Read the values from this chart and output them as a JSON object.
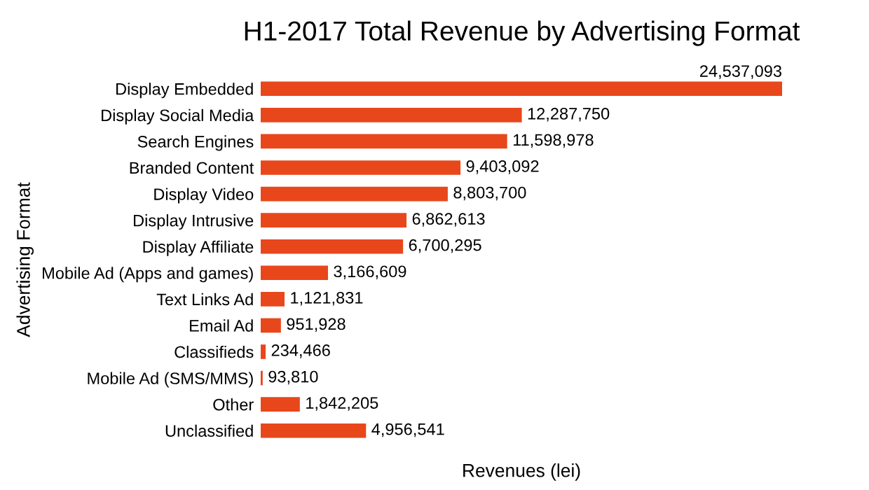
{
  "chart_data": {
    "type": "bar",
    "orientation": "horizontal",
    "title": "H1-2017 Total Revenue by Advertising Format",
    "xlabel": "Revenues (lei)",
    "ylabel": "Advertising Format",
    "categories": [
      "Display Embedded",
      "Display Social Media",
      "Search Engines",
      "Branded Content",
      "Display Video",
      "Display Intrusive",
      "Display Affiliate",
      "Mobile Ad (Apps and games)",
      "Text Links Ad",
      "Email Ad",
      "Classifieds",
      "Mobile Ad (SMS/MMS)",
      "Other",
      "Unclassified"
    ],
    "values": [
      24537093,
      12287750,
      11598978,
      9403092,
      8803700,
      6862613,
      6700295,
      3166609,
      1121831,
      951928,
      234466,
      93810,
      1842205,
      4956541
    ],
    "value_labels": [
      "24,537,093",
      "12,287,750",
      "11,598,978",
      "9,403,092",
      "8,803,700",
      "6,862,613",
      "6,700,295",
      "3,166,609",
      "1,121,831",
      "951,928",
      "234,466",
      "93,810",
      "1,842,205",
      "4,956,541"
    ],
    "color": "#e8471c",
    "grid": false,
    "legend": false
  }
}
